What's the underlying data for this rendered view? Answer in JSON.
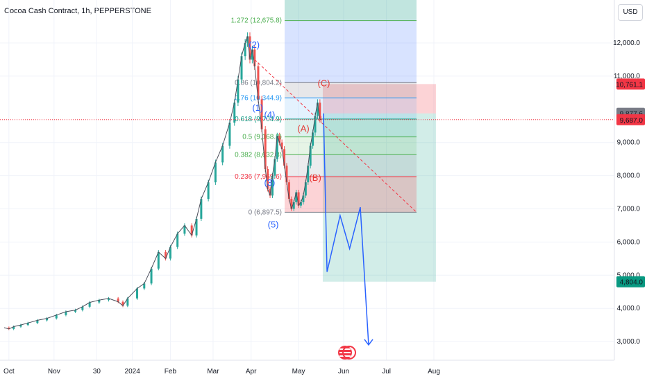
{
  "header": {
    "title": "Cocoa Cash Contract, 1h, PEPPERSTONE",
    "currency": "USD"
  },
  "colors": {
    "up": "#26a69a",
    "down": "#ef5350",
    "fib0": "#787b86",
    "fib236": "#f23645",
    "fib382": "#4caf50",
    "fib5": "#4caf50",
    "fib618": "#089981",
    "fib76": "#2196f3",
    "fib86": "#787b86",
    "fib1272": "#4caf50",
    "wave_blue": "#2962ff",
    "wave_red": "#e53935",
    "projection": "#2962ff",
    "price_line": "#f23645"
  },
  "chart_data": {
    "type": "candlestick",
    "symbol": "Cocoa Cash Contract",
    "interval": "1h",
    "exchange": "PEPPERSTONE",
    "x_tick_labels": [
      "Oct",
      "Nov",
      "30",
      "2024",
      "Feb",
      "Mar",
      "Apr",
      "May",
      "Jun",
      "Jul",
      "Aug"
    ],
    "y_tick_labels": [
      "12,000.0",
      "11,000.0",
      "9,000.0",
      "8,000.0",
      "7,000.0",
      "6,000.0",
      "5,000.0",
      "4,000.0",
      "3,000.0"
    ],
    "y_ticks": [
      12000,
      11000,
      9000,
      8000,
      7000,
      6000,
      5000,
      4000,
      3000
    ],
    "price_labels": [
      {
        "text": "10,761.1",
        "value": 10761.1,
        "color": "#f23645"
      },
      {
        "text": "9,877.6",
        "value": 9877.6,
        "color": "#787b86"
      },
      {
        "text": "9,687.0",
        "value": 9687.0,
        "color": "#f23645"
      },
      {
        "text": "4,804.0",
        "value": 4804.0,
        "color": "#089981"
      }
    ],
    "last_price": 9687.0,
    "price_path": [
      [
        0.0,
        3420
      ],
      [
        0.2,
        3380
      ],
      [
        0.4,
        3450
      ],
      [
        0.7,
        3500
      ],
      [
        1.0,
        3560
      ],
      [
        1.4,
        3640
      ],
      [
        1.8,
        3700
      ],
      [
        2.2,
        3800
      ],
      [
        2.6,
        3900
      ],
      [
        3.0,
        3950
      ],
      [
        3.3,
        4050
      ],
      [
        3.6,
        4180
      ],
      [
        4.0,
        4250
      ],
      [
        4.4,
        4300
      ],
      [
        4.8,
        4200
      ],
      [
        5.0,
        4080
      ],
      [
        5.2,
        4300
      ],
      [
        5.6,
        4600
      ],
      [
        5.9,
        4750
      ],
      [
        6.2,
        5200
      ],
      [
        6.5,
        5700
      ],
      [
        6.8,
        5500
      ],
      [
        7.0,
        5850
      ],
      [
        7.3,
        6250
      ],
      [
        7.6,
        6500
      ],
      [
        7.9,
        6200
      ],
      [
        8.1,
        6700
      ],
      [
        8.3,
        7300
      ],
      [
        8.6,
        7800
      ],
      [
        8.9,
        8400
      ],
      [
        9.2,
        8900
      ],
      [
        9.5,
        9600
      ],
      [
        9.7,
        10200
      ],
      [
        9.85,
        10900
      ],
      [
        10.0,
        11600
      ],
      [
        10.15,
        12000
      ],
      [
        10.25,
        12200
      ],
      [
        10.35,
        11500
      ],
      [
        10.45,
        11800
      ],
      [
        10.55,
        11300
      ],
      [
        10.7,
        10300
      ],
      [
        10.85,
        9400
      ],
      [
        11.0,
        8200
      ],
      [
        11.1,
        7600
      ],
      [
        11.2,
        7400
      ],
      [
        11.3,
        8000
      ],
      [
        11.4,
        8500
      ],
      [
        11.5,
        9200
      ],
      [
        11.6,
        9000
      ],
      [
        11.7,
        8800
      ],
      [
        11.8,
        8300
      ],
      [
        11.9,
        7800
      ],
      [
        12.0,
        7300
      ],
      [
        12.1,
        7000
      ],
      [
        12.2,
        7200
      ],
      [
        12.3,
        7500
      ],
      [
        12.4,
        7100
      ],
      [
        12.5,
        7200
      ],
      [
        12.6,
        7400
      ],
      [
        12.7,
        7800
      ],
      [
        12.8,
        8300
      ],
      [
        12.9,
        8900
      ],
      [
        13.0,
        9300
      ],
      [
        13.1,
        9800
      ],
      [
        13.2,
        10200
      ],
      [
        13.3,
        9700
      ],
      [
        13.35,
        9687
      ]
    ],
    "projection": {
      "name": "projection",
      "points": [
        [
          13.45,
          9877.6
        ],
        [
          13.6,
          5100
        ],
        [
          14.15,
          6800
        ],
        [
          14.55,
          5800
        ],
        [
          15.0,
          7050
        ],
        [
          15.35,
          2900
        ]
      ]
    },
    "fib_retracement": {
      "levels": [
        {
          "ratio": "0",
          "label": "0 (6,897.5)",
          "value": 6897.5
        },
        {
          "ratio": "0.236",
          "label": "0.236 (7,969.6)",
          "value": 7969.6
        },
        {
          "ratio": "0.382",
          "label": "0.382 (8,632.8)",
          "value": 8632.8
        },
        {
          "ratio": "0.5",
          "label": "0.5 (9,168.8)",
          "value": 9168.8
        },
        {
          "ratio": "0.618",
          "label": "0.618 (9,704.9)",
          "value": 9704.9
        },
        {
          "ratio": "0.76",
          "label": "0.76 (10,344.9)",
          "value": 10344.9
        },
        {
          "ratio": "0.86",
          "label": "0.86 (10,804.2)",
          "value": 10804.2
        },
        {
          "ratio": "1.272",
          "label": "1.272 (12,675.8)",
          "value": 12675.8
        }
      ]
    },
    "position": {
      "type": "short",
      "entry": 9877.6,
      "stop": 10761.1,
      "target": 4804.0
    },
    "wave_labels": [
      {
        "text": "(1)",
        "x": 10.45,
        "y": 9950,
        "color": "#2962ff"
      },
      {
        "text": "(2)",
        "x": 10.3,
        "y": 11850,
        "color": "#2962ff"
      },
      {
        "text": "(3)",
        "x": 10.95,
        "y": 7700,
        "color": "#2962ff"
      },
      {
        "text": "(4)",
        "x": 10.95,
        "y": 9750,
        "color": "#2962ff"
      },
      {
        "text": "(5)",
        "x": 11.1,
        "y": 6440,
        "color": "#2962ff"
      },
      {
        "text": "(A)",
        "x": 12.35,
        "y": 9330,
        "color": "#e53935"
      },
      {
        "text": "(B)",
        "x": 12.85,
        "y": 7850,
        "color": "#e53935"
      },
      {
        "text": "(C)",
        "x": 13.2,
        "y": 10700,
        "color": "#e53935"
      }
    ]
  }
}
